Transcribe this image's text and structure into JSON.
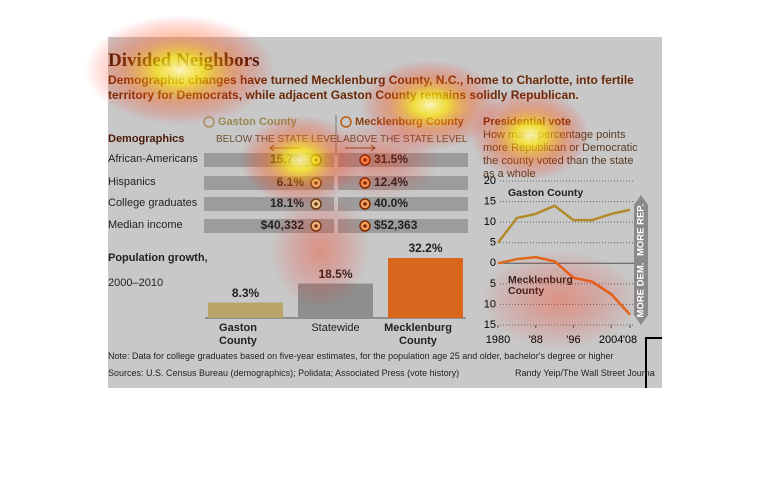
{
  "title": "Divided Neighbors",
  "subtitle": "Demographic changes have turned Mecklenburg County, N.C., home to Charlotte, into fertile territory for Democrats, while adjacent Gaston County remains solidly Republican.",
  "demographics": {
    "header": "Demographics",
    "columns": [
      {
        "name": "Gaston County",
        "note": "BELOW THE STATE LEVEL"
      },
      {
        "name": "Mecklenburg County",
        "note": "ABOVE THE STATE LEVEL"
      }
    ],
    "rows": [
      [
        "African-Americans",
        "15.7%",
        "31.5%"
      ],
      [
        "Hispanics",
        "6.1%",
        "12.4%"
      ],
      [
        "College graduates",
        "18.1%",
        "40.0%"
      ],
      [
        "Median income",
        "$40,332",
        "$52,363"
      ]
    ]
  },
  "chart_data": [
    {
      "type": "bar",
      "title": "Population growth,",
      "subtitle": "2000–2010",
      "categories": [
        "Gaston County",
        "Statewide",
        "Mecklenburg County"
      ],
      "values": [
        8.3,
        18.5,
        32.2
      ],
      "value_labels": [
        "8.3%",
        "18.5%",
        "32.2%"
      ],
      "colors": [
        "#b9a56a",
        "#8e8e8e",
        "#d9661c"
      ]
    },
    {
      "type": "line",
      "title": "Presidential vote",
      "subtitle": "How many percentage points more Republican or Democratic the county voted than the state as a whole",
      "x": [
        1980,
        1984,
        1988,
        1992,
        1996,
        2000,
        2004,
        2008
      ],
      "series": [
        {
          "name": "Gaston County",
          "color": "#b38a2a",
          "values": [
            5,
            11,
            12,
            14,
            10.5,
            10.5,
            12,
            13
          ]
        },
        {
          "name": "Mecklenburg County",
          "color": "#e06a1a",
          "values": [
            0,
            1,
            1.5,
            0.5,
            -3.5,
            -4.5,
            -7.5,
            -12.5
          ]
        }
      ],
      "xlim": [
        1980,
        2008
      ],
      "ylim": [
        -15,
        20
      ],
      "xticks": [
        1980,
        {
          "value": 1988,
          "label": "'88"
        },
        {
          "value": 1996,
          "label": "'96"
        },
        2004,
        {
          "value": 2008,
          "label": "'08"
        }
      ],
      "yticks": [
        20,
        15,
        10,
        5,
        0,
        {
          "value": -5,
          "label": "5"
        },
        {
          "value": -10,
          "label": "10"
        },
        {
          "value": -15,
          "label": "15"
        }
      ],
      "grid": true,
      "annotations": [
        "MORE REP.",
        "MORE DEM."
      ]
    }
  ],
  "note": "Note: Data for college graduates based on five-year estimates, for the population age 25 and older, bachelor's degree or higher",
  "sources": "Sources: U.S. Census Bureau (demographics); Polidata; Associated Press (vote history)",
  "credit": "Randy Yeip/The Wall Street Journa"
}
